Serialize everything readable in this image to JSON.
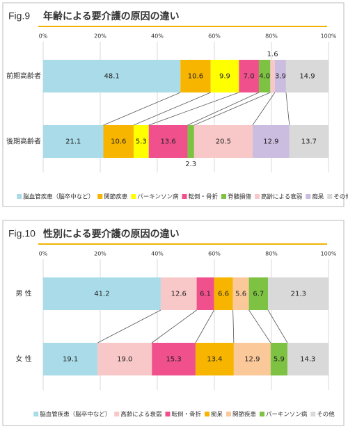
{
  "chart_data": [
    {
      "type": "stacked-bar-horizontal",
      "figure_label": "Fig.9",
      "title": "年齢による要介護の原因の違い",
      "categories": [
        "前期高齢者",
        "後期高齢者"
      ],
      "xlim": [
        0,
        100
      ],
      "xticks": [
        {
          "value": 0,
          "label": "0%"
        },
        {
          "value": 20,
          "label": "20%"
        },
        {
          "value": 40,
          "label": "40%"
        },
        {
          "value": 60,
          "label": "60%"
        },
        {
          "value": 80,
          "label": "80%"
        },
        {
          "value": 100,
          "label": "100%"
        }
      ],
      "grid": true,
      "series": [
        {
          "name": "脳血管疾患（脳卒中など）",
          "color": "#a9dbe8",
          "values": [
            48.1,
            21.1
          ]
        },
        {
          "name": "関節疾患",
          "color": "#f7b500",
          "values": [
            10.6,
            10.6
          ]
        },
        {
          "name": "パーキンソン病",
          "color": "#ffff00",
          "values": [
            9.9,
            5.3
          ]
        },
        {
          "name": "転倒・骨折",
          "color": "#f0508c",
          "values": [
            7.0,
            13.6
          ],
          "value_labels": [
            "7.0",
            "13.6"
          ]
        },
        {
          "name": "脊髄損傷",
          "color": "#7dc242",
          "values": [
            4.0,
            2.3
          ],
          "value_labels": [
            "4.0",
            "2.3"
          ]
        },
        {
          "name": "高齢による衰弱",
          "color": "#f8c8c8",
          "values": [
            1.6,
            20.5
          ]
        },
        {
          "name": "痴呆",
          "color": "#cbbde0",
          "values": [
            3.9,
            12.9
          ]
        },
        {
          "name": "その他",
          "color": "#d9d9d9",
          "values": [
            14.9,
            13.7
          ]
        }
      ]
    },
    {
      "type": "stacked-bar-horizontal",
      "figure_label": "Fig.10",
      "title": "性別による要介護の原因の違い",
      "categories": [
        "男 性",
        "女 性"
      ],
      "xlim": [
        0,
        100
      ],
      "xticks": [
        {
          "value": 0,
          "label": "0%"
        },
        {
          "value": 20,
          "label": "20%"
        },
        {
          "value": 40,
          "label": "40%"
        },
        {
          "value": 60,
          "label": "60%"
        },
        {
          "value": 80,
          "label": "80%"
        },
        {
          "value": 100,
          "label": "100%"
        }
      ],
      "grid": true,
      "series": [
        {
          "name": "脳血管疾患（脳卒中など）",
          "color": "#a9dbe8",
          "values": [
            41.2,
            19.1
          ]
        },
        {
          "name": "高齢による衰弱",
          "color": "#f8c8c8",
          "values": [
            12.6,
            19.0
          ],
          "value_labels": [
            "12.6",
            "19.0"
          ]
        },
        {
          "name": "転倒・骨折",
          "color": "#f0508c",
          "values": [
            6.1,
            15.3
          ]
        },
        {
          "name": "痴呆",
          "color": "#f7b500",
          "values": [
            6.6,
            13.4
          ]
        },
        {
          "name": "関節疾患",
          "color": "#fbc89a",
          "values": [
            5.6,
            12.9
          ]
        },
        {
          "name": "パーキンソン病",
          "color": "#7dc242",
          "values": [
            6.7,
            5.9
          ]
        },
        {
          "name": "その他",
          "color": "#d9d9d9",
          "values": [
            21.3,
            14.3
          ]
        }
      ]
    }
  ]
}
